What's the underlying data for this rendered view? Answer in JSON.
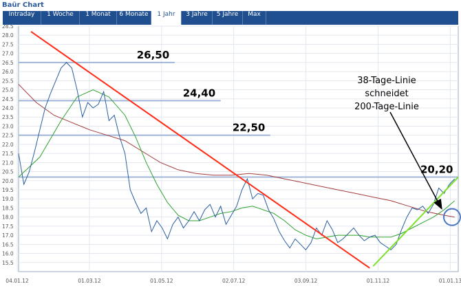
{
  "header": {
    "title": "Baür Chart"
  },
  "tabs": [
    {
      "label": "Intraday",
      "active": false
    },
    {
      "label": "1 Woche",
      "active": false
    },
    {
      "label": "1 Monat",
      "active": false
    },
    {
      "label": "6 Monate",
      "active": false
    },
    {
      "label": "1 Jahr",
      "active": true
    },
    {
      "label": "3 Jahre",
      "active": false
    },
    {
      "label": "5 Jahre",
      "active": false
    },
    {
      "label": "Max",
      "active": false
    }
  ],
  "colors": {
    "price": "#2a5d9e",
    "ma38": "#2ea02e",
    "ma200": "#a33a3a",
    "downtrend": "#ff2a14",
    "uptrend": "#7ee02a",
    "levels": "#9fb4d8",
    "tab_bar": "#1f4f8f"
  },
  "chart_data": {
    "type": "line",
    "ylim": [
      15.0,
      28.5
    ],
    "y_ticks": [
      15.5,
      16.0,
      16.5,
      17.0,
      17.5,
      18.0,
      18.5,
      19.0,
      19.5,
      20.0,
      20.5,
      21.0,
      21.5,
      22.0,
      22.5,
      23.0,
      23.5,
      24.0,
      24.5,
      25.0,
      25.5,
      26.0,
      26.5,
      27.0,
      27.5,
      28.0,
      28.5
    ],
    "x_ticks": [
      "04.01.12",
      "01.03.12",
      "01.05.12",
      "02.07.12",
      "03.09.12",
      "01.11.12",
      "01.01.13"
    ],
    "grid": true,
    "series": [
      {
        "role": "price",
        "points": [
          [
            0,
            21.5
          ],
          [
            3,
            19.8
          ],
          [
            6,
            20.5
          ],
          [
            9,
            21.6
          ],
          [
            12,
            22.8
          ],
          [
            15,
            24.0
          ],
          [
            18,
            24.8
          ],
          [
            21,
            25.5
          ],
          [
            24,
            26.2
          ],
          [
            27,
            26.5
          ],
          [
            30,
            26.2
          ],
          [
            33,
            25.0
          ],
          [
            36,
            23.5
          ],
          [
            39,
            24.3
          ],
          [
            42,
            24.0
          ],
          [
            45,
            24.2
          ],
          [
            48,
            24.9
          ],
          [
            51,
            23.3
          ],
          [
            54,
            23.6
          ],
          [
            57,
            22.4
          ],
          [
            60,
            21.5
          ],
          [
            63,
            19.5
          ],
          [
            66,
            18.8
          ],
          [
            69,
            18.2
          ],
          [
            72,
            18.5
          ],
          [
            75,
            17.2
          ],
          [
            78,
            17.8
          ],
          [
            81,
            17.4
          ],
          [
            84,
            16.8
          ],
          [
            87,
            17.6
          ],
          [
            90,
            18.0
          ],
          [
            93,
            17.4
          ],
          [
            96,
            17.8
          ],
          [
            99,
            18.3
          ],
          [
            102,
            17.8
          ],
          [
            105,
            18.4
          ],
          [
            108,
            18.7
          ],
          [
            111,
            18.0
          ],
          [
            114,
            18.6
          ],
          [
            117,
            17.6
          ],
          [
            120,
            18.1
          ],
          [
            123,
            18.6
          ],
          [
            126,
            19.5
          ],
          [
            129,
            20.1
          ],
          [
            132,
            19.0
          ],
          [
            135,
            19.3
          ],
          [
            138,
            19.2
          ],
          [
            141,
            18.4
          ],
          [
            144,
            17.9
          ],
          [
            147,
            17.2
          ],
          [
            150,
            16.7
          ],
          [
            153,
            16.3
          ],
          [
            156,
            16.8
          ],
          [
            159,
            16.5
          ],
          [
            162,
            16.2
          ],
          [
            165,
            16.6
          ],
          [
            168,
            17.4
          ],
          [
            171,
            17.0
          ],
          [
            174,
            17.8
          ],
          [
            177,
            17.3
          ],
          [
            180,
            16.6
          ],
          [
            183,
            16.8
          ],
          [
            186,
            17.1
          ],
          [
            189,
            17.4
          ],
          [
            192,
            17.0
          ],
          [
            195,
            16.7
          ],
          [
            198,
            16.9
          ],
          [
            201,
            17.0
          ],
          [
            204,
            16.6
          ],
          [
            207,
            16.4
          ],
          [
            210,
            16.2
          ],
          [
            213,
            16.5
          ],
          [
            216,
            17.3
          ],
          [
            219,
            18.0
          ],
          [
            222,
            18.5
          ],
          [
            225,
            18.4
          ],
          [
            228,
            18.6
          ],
          [
            231,
            18.2
          ],
          [
            234,
            18.7
          ],
          [
            237,
            19.6
          ],
          [
            240,
            19.3
          ],
          [
            243,
            19.8
          ],
          [
            246,
            20.1
          ]
        ]
      },
      {
        "role": "ma38",
        "points": [
          [
            0,
            20.2
          ],
          [
            12,
            21.3
          ],
          [
            24,
            23.3
          ],
          [
            33,
            24.6
          ],
          [
            42,
            25.0
          ],
          [
            51,
            24.6
          ],
          [
            60,
            23.6
          ],
          [
            66,
            22.4
          ],
          [
            72,
            21.0
          ],
          [
            78,
            19.8
          ],
          [
            84,
            18.8
          ],
          [
            90,
            18.1
          ],
          [
            96,
            17.8
          ],
          [
            102,
            17.8
          ],
          [
            108,
            18.0
          ],
          [
            114,
            18.2
          ],
          [
            120,
            18.3
          ],
          [
            126,
            18.5
          ],
          [
            132,
            18.6
          ],
          [
            138,
            18.4
          ],
          [
            144,
            18.2
          ],
          [
            150,
            17.8
          ],
          [
            156,
            17.3
          ],
          [
            162,
            17.0
          ],
          [
            168,
            16.8
          ],
          [
            174,
            16.9
          ],
          [
            180,
            17.0
          ],
          [
            186,
            17.0
          ],
          [
            192,
            17.0
          ],
          [
            198,
            16.9
          ],
          [
            204,
            16.9
          ],
          [
            210,
            16.9
          ],
          [
            216,
            17.1
          ],
          [
            222,
            17.4
          ],
          [
            228,
            17.7
          ],
          [
            234,
            18.0
          ],
          [
            240,
            18.4
          ],
          [
            246,
            18.9
          ]
        ]
      },
      {
        "role": "ma200",
        "points": [
          [
            0,
            25.3
          ],
          [
            10,
            24.3
          ],
          [
            20,
            23.6
          ],
          [
            30,
            23.2
          ],
          [
            40,
            22.8
          ],
          [
            50,
            22.5
          ],
          [
            60,
            22.2
          ],
          [
            70,
            21.6
          ],
          [
            80,
            21.0
          ],
          [
            90,
            20.6
          ],
          [
            100,
            20.4
          ],
          [
            110,
            20.3
          ],
          [
            120,
            20.3
          ],
          [
            130,
            20.4
          ],
          [
            140,
            20.3
          ],
          [
            150,
            20.1
          ],
          [
            160,
            19.9
          ],
          [
            170,
            19.7
          ],
          [
            180,
            19.5
          ],
          [
            190,
            19.3
          ],
          [
            200,
            19.1
          ],
          [
            210,
            18.9
          ],
          [
            220,
            18.6
          ],
          [
            230,
            18.3
          ],
          [
            240,
            18.1
          ],
          [
            246,
            18.0
          ]
        ]
      }
    ],
    "trend_lines": [
      {
        "role": "downtrend",
        "from": [
          7,
          28.2
        ],
        "to": [
          198,
          15.2
        ]
      },
      {
        "role": "uptrend",
        "from": [
          200,
          15.3
        ],
        "to": [
          248,
          20.2
        ]
      }
    ],
    "levels": [
      {
        "value": 26.5,
        "label": "26,50",
        "x_to": 88
      },
      {
        "value": 24.4,
        "label": "24,40",
        "x_to": 114
      },
      {
        "value": 22.5,
        "label": "22,50",
        "x_to": 142
      },
      {
        "value": 20.2,
        "label": "20,20",
        "x_to": 248
      }
    ],
    "annotation": {
      "lines": [
        "38-Tage-Linie",
        "schneidet",
        "200-Tage-Linie"
      ],
      "target": [
        241,
        18.0
      ]
    }
  }
}
